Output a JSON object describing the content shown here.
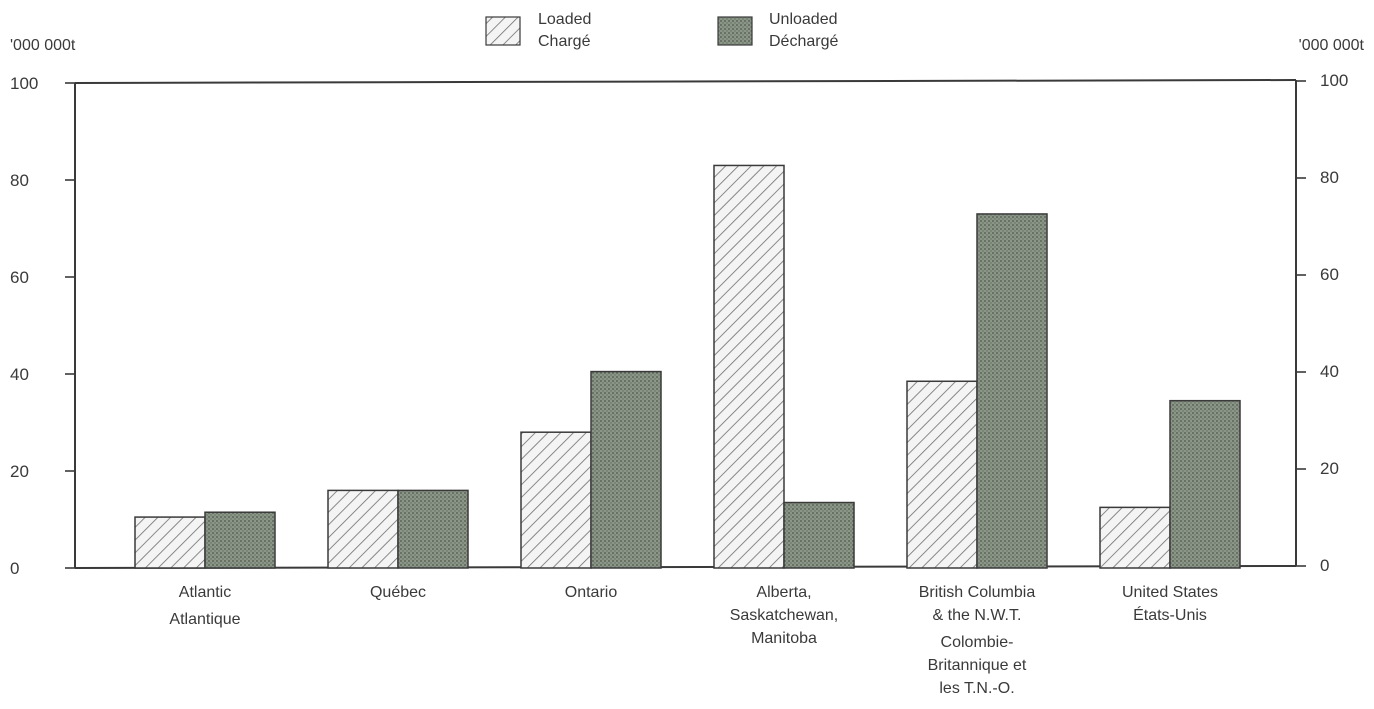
{
  "chart_data": {
    "type": "bar",
    "units_left": "'000 000t",
    "units_right": "'000 000t",
    "legend": [
      {
        "lines": [
          "Loaded",
          "Chargé"
        ]
      },
      {
        "lines": [
          "Unloaded",
          "Déchargé"
        ]
      }
    ],
    "series_names": [
      "Loaded / Chargé",
      "Unloaded / Déchargé"
    ],
    "categories": [
      {
        "lines": [
          "Atlantic",
          "Atlantique"
        ]
      },
      {
        "lines": [
          "Québec"
        ]
      },
      {
        "lines": [
          "Ontario"
        ]
      },
      {
        "lines": [
          "Alberta,",
          "Saskatchewan,",
          "Manitoba"
        ]
      },
      {
        "lines": [
          "British Columbia",
          "& the N.W.T.",
          "Colombie-",
          "Britannique et",
          "les T.N.-O."
        ]
      },
      {
        "lines": [
          "United States",
          "États-Unis"
        ]
      }
    ],
    "series": [
      {
        "values": [
          10.5,
          16,
          28,
          83,
          38.5,
          12.5
        ]
      },
      {
        "values": [
          11.5,
          16,
          40.5,
          13.5,
          73,
          34.5
        ]
      }
    ],
    "ylim": [
      0,
      100
    ],
    "yticks": [
      0,
      20,
      40,
      60,
      80,
      100
    ],
    "grid": false,
    "legend_position": "top-center",
    "colors": {
      "loaded_hatch": "#6e6e6e",
      "loaded_fill": "#f4f4f4",
      "unloaded_fill": "#7f8b7c",
      "unloaded_dots": "#4d584c",
      "axis": "#3a3a3a"
    }
  }
}
